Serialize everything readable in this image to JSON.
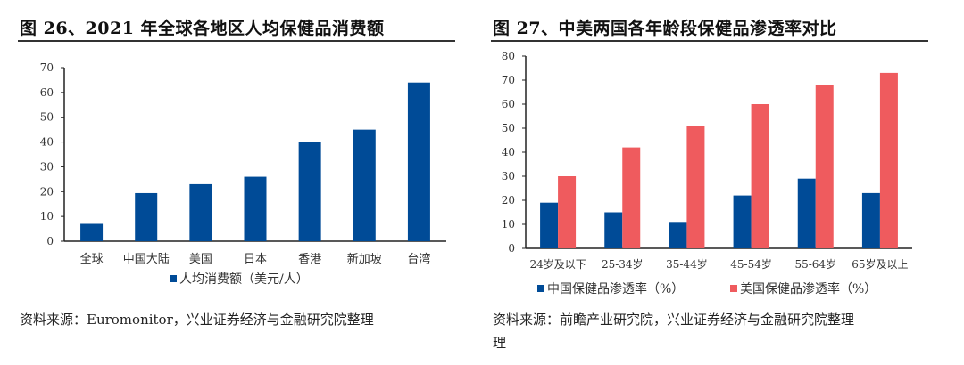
{
  "colors": {
    "china_blue": "#004b97",
    "us_red": "#ef5b5e",
    "axis": "#222222"
  },
  "left": {
    "title": "图 26、2021 年全球各地区人均保健品消费额",
    "source": "资料来源：Euromonitor，兴业证券经济与金融研究院整理"
  },
  "right": {
    "title": "图 27、中美两国各年龄段保健品渗透率对比",
    "source_line1": "资料来源：前瞻产业研究院，兴业证券经济与金融研究院整理",
    "source_line2": "理"
  },
  "chart_data": [
    {
      "type": "bar",
      "categories": [
        "全球",
        "中国大陆",
        "美国",
        "日本",
        "香港",
        "新加坡",
        "台湾"
      ],
      "series": [
        {
          "name": "人均消费额（美元/人）",
          "values": [
            7,
            19.4,
            23,
            26,
            40,
            45,
            64
          ]
        }
      ],
      "ylim": [
        0,
        70
      ],
      "yticks": [
        0,
        10,
        20,
        30,
        40,
        50,
        60,
        70
      ],
      "legend": "bottom",
      "grid": false
    },
    {
      "type": "bar",
      "categories": [
        "24岁及以下",
        "25-34岁",
        "35-44岁",
        "45-54岁",
        "55-64岁",
        "65岁及以上"
      ],
      "series": [
        {
          "name": "中国保健品渗透率（%）",
          "values": [
            19,
            15,
            11,
            22,
            29,
            23
          ]
        },
        {
          "name": "美国保健品渗透率（%）",
          "values": [
            30,
            42,
            51,
            60,
            68,
            73
          ]
        }
      ],
      "ylim": [
        0,
        80
      ],
      "yticks": [
        0,
        10,
        20,
        30,
        40,
        50,
        60,
        70,
        80
      ],
      "legend": "bottom",
      "grid": false
    }
  ]
}
